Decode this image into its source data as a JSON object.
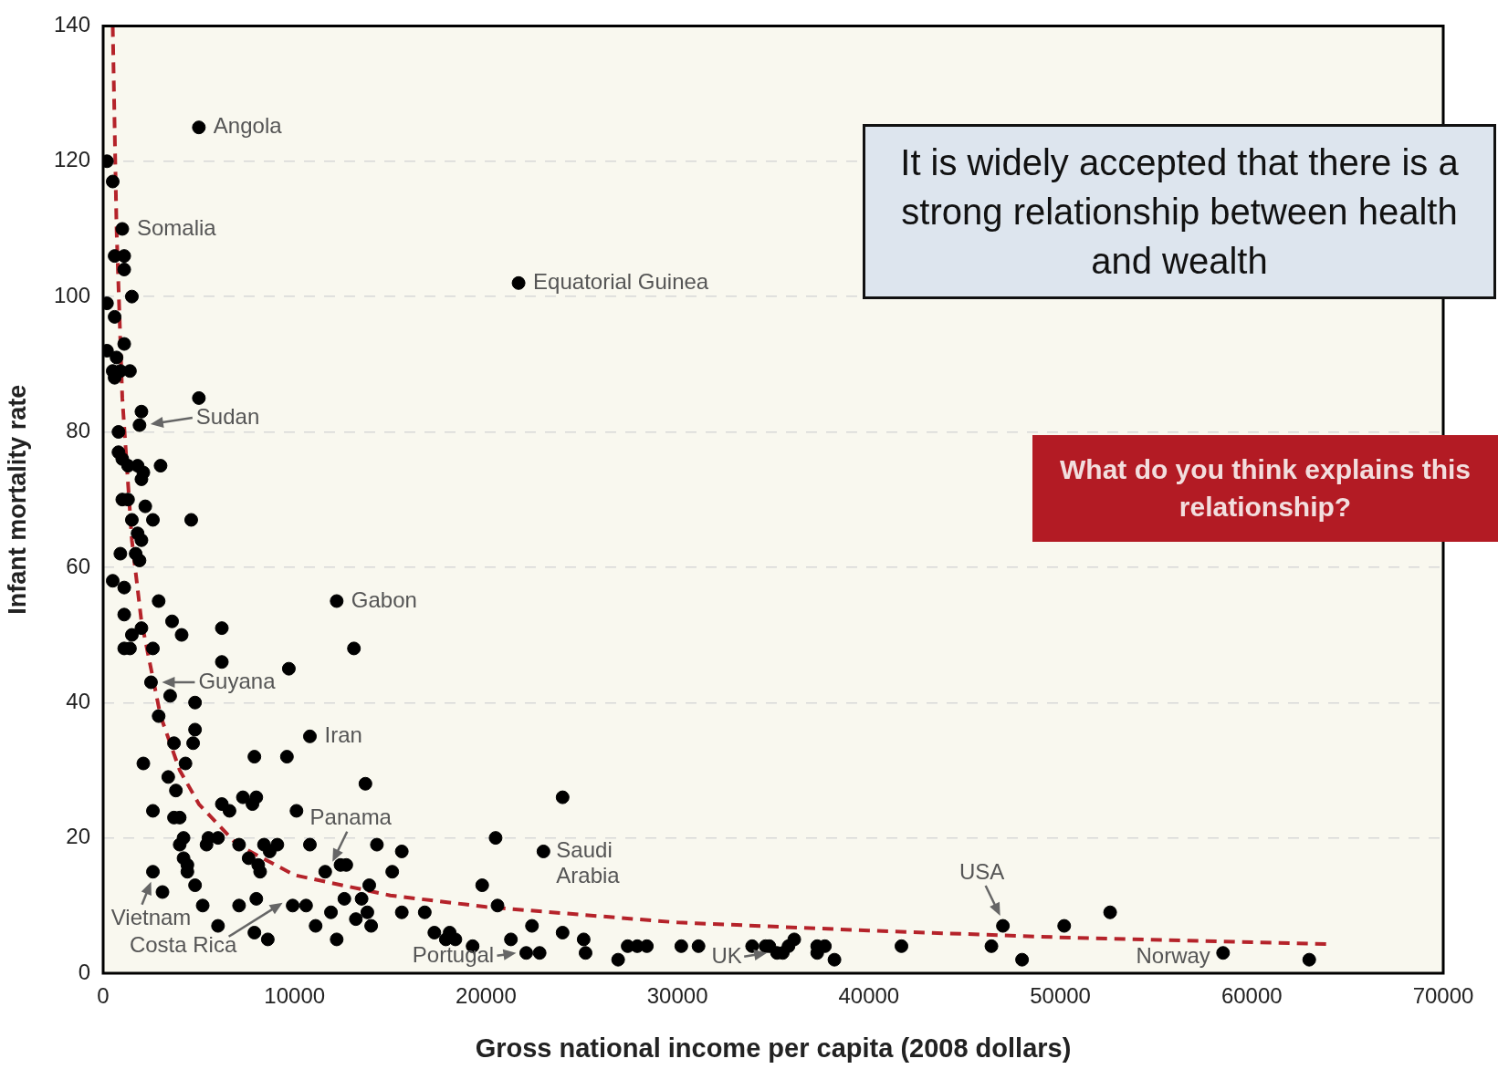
{
  "chart_data": {
    "type": "scatter",
    "xlabel": "Gross national income per capita (2008 dollars)",
    "ylabel": "Infant mortality rate",
    "xlim": [
      0,
      70000
    ],
    "xticks": [
      0,
      10000,
      20000,
      30000,
      40000,
      50000,
      60000,
      70000
    ],
    "ylim": [
      0,
      140
    ],
    "yticks": [
      0,
      20,
      40,
      60,
      80,
      100,
      120,
      140
    ],
    "grid": "y",
    "series": [
      {
        "color": "#000000",
        "marker": "circle",
        "x": [
          5000,
          21700,
          12200,
          13100,
          10800,
          1000,
          200,
          500,
          600,
          1100,
          1100,
          1500,
          200,
          600,
          200,
          1100,
          700,
          500,
          900,
          1400,
          600,
          2000,
          1900,
          5000,
          800,
          800,
          1000,
          1300,
          1800,
          2100,
          2000,
          3000,
          1000,
          1300,
          2200,
          1500,
          2600,
          4600,
          1800,
          2000,
          1700,
          1900,
          900,
          500,
          1100,
          2900,
          3600,
          4100,
          6200,
          1100,
          1500,
          1100,
          1400,
          2000,
          2600,
          6200,
          9700,
          2500,
          3500,
          4800,
          2900,
          4800,
          4700,
          3700,
          2100,
          4300,
          3400,
          9600,
          7900,
          3800,
          3700,
          4000,
          2600,
          6200,
          6600,
          7300,
          8000,
          7800,
          10100,
          13700,
          4200,
          4000,
          4200,
          5500,
          5400,
          2600,
          3100,
          4400,
          4400,
          4800,
          5200,
          6000,
          6000,
          7100,
          7600,
          7100,
          8000,
          8400,
          9100,
          8700,
          7900,
          8600,
          8100,
          8200,
          9900,
          10600,
          11100,
          10800,
          11600,
          12400,
          12700,
          11900,
          12600,
          12200,
          13500,
          13200,
          13800,
          14000,
          13900,
          14300,
          15100,
          15600,
          15600,
          16800,
          17300,
          17900,
          18400,
          18100,
          19300,
          19800,
          20500,
          20600,
          21300,
          22400,
          22100,
          22800,
          23000,
          24000,
          24000,
          25100,
          25200,
          26900,
          27400,
          27900,
          28400,
          30200,
          31100,
          33900,
          34600,
          34800,
          35200,
          35500,
          35800,
          36100,
          37300,
          37300,
          37700,
          38200,
          41700,
          46400,
          47000,
          48000,
          50200,
          52600,
          58500,
          63000
        ],
        "values": [
          125,
          102,
          55,
          48,
          35,
          110,
          120,
          117,
          106,
          106,
          104,
          100,
          99,
          97,
          92,
          93,
          91,
          89,
          89,
          89,
          88,
          83,
          81,
          85,
          80,
          77,
          76,
          75,
          75,
          74,
          73,
          75,
          70,
          70,
          69,
          67,
          67,
          67,
          65,
          64,
          62,
          61,
          62,
          58,
          57,
          55,
          52,
          50,
          51,
          53,
          50,
          48,
          48,
          51,
          48,
          46,
          45,
          43,
          41,
          40,
          38,
          36,
          34,
          34,
          31,
          31,
          29,
          32,
          32,
          27,
          23,
          23,
          24,
          25,
          24,
          26,
          26,
          25,
          24,
          28,
          20,
          19,
          17,
          20,
          19,
          15,
          12,
          16,
          15,
          13,
          10,
          7,
          20,
          19,
          17,
          10,
          11,
          19,
          19,
          18,
          6,
          5,
          16,
          15,
          10,
          10,
          7,
          19,
          15,
          16,
          16,
          9,
          11,
          5,
          11,
          8,
          9,
          7,
          13,
          19,
          15,
          18,
          9,
          9,
          6,
          5,
          5,
          6,
          4,
          13,
          20,
          10,
          5,
          7,
          3,
          3,
          18,
          26,
          6,
          5,
          3,
          2,
          4,
          4,
          4,
          4,
          4,
          4,
          4,
          4,
          3,
          3,
          4,
          5,
          4,
          3,
          4,
          2,
          4,
          4,
          7,
          2,
          7,
          9,
          3,
          2
        ]
      },
      {
        "type": "line",
        "color": "#b5232a",
        "marker": "none",
        "line_style": "dashed",
        "x": [
          500,
          700,
          1000,
          1500,
          2000,
          3000,
          4000,
          5000,
          7000,
          10000,
          15000,
          20000,
          30000,
          40000,
          50000,
          64000
        ],
        "values": [
          140,
          110,
          85,
          64,
          52,
          38,
          30,
          25,
          19,
          14.5,
          11.5,
          9.8,
          7.5,
          6.3,
          5.3,
          4.3
        ]
      }
    ],
    "annotations": [
      {
        "text": "Angola",
        "x": 5000,
        "y": 125
      },
      {
        "text": "Somalia",
        "x": 1000,
        "y": 110
      },
      {
        "text": "Equatorial Guinea",
        "x": 21700,
        "y": 102
      },
      {
        "text": "Sudan",
        "x": 1900,
        "y": 81
      },
      {
        "text": "Gabon",
        "x": 12200,
        "y": 55
      },
      {
        "text": "Guyana",
        "x": 2500,
        "y": 43
      },
      {
        "text": "Iran",
        "x": 10800,
        "y": 35
      },
      {
        "text": "Panama",
        "x": 11600,
        "y": 15
      },
      {
        "text": "Vietnam",
        "x": 2600,
        "y": 15
      },
      {
        "text": "Costa Rica",
        "x": 9900,
        "y": 10
      },
      {
        "text": "Portugal",
        "x": 22100,
        "y": 3
      },
      {
        "text": "Saudi Arabia",
        "x": 23000,
        "y": 18
      },
      {
        "text": "USA",
        "x": 47000,
        "y": 7
      },
      {
        "text": "UK",
        "x": 35200,
        "y": 3
      },
      {
        "text": "Norway",
        "x": 58500,
        "y": 3
      },
      "It is widely accepted that there is a strong relationship between health and wealth",
      "What do you think explains this relationship?"
    ]
  }
}
